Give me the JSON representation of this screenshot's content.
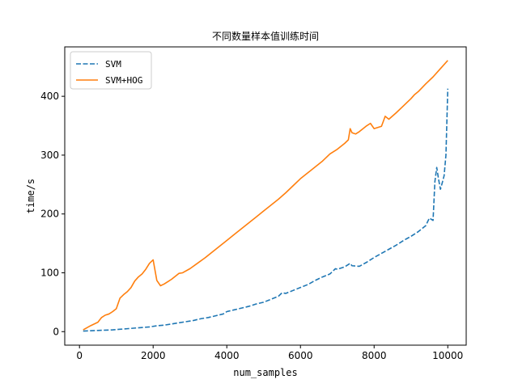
{
  "chart_data": {
    "type": "line",
    "title": "不同数量样本值训练时间",
    "xlabel": "num_samples",
    "ylabel": "time/s",
    "xlim": [
      -400,
      10500
    ],
    "ylim": [
      -23,
      484
    ],
    "xticks": [
      0,
      2000,
      4000,
      6000,
      8000,
      10000
    ],
    "yticks": [
      0,
      100,
      200,
      300,
      400
    ],
    "grid": false,
    "legend_position": "top-left",
    "series": [
      {
        "name": "SVM",
        "color": "#1f77b4",
        "style": "dashed",
        "x": [
          100,
          300,
          500,
          700,
          900,
          1100,
          1300,
          1500,
          1700,
          1900,
          2100,
          2300,
          2500,
          2700,
          2900,
          3100,
          3300,
          3500,
          3700,
          3900,
          4000,
          4200,
          4400,
          4600,
          4800,
          5000,
          5200,
          5400,
          5500,
          5600,
          5800,
          6000,
          6200,
          6400,
          6600,
          6800,
          6950,
          7000,
          7200,
          7350,
          7400,
          7600,
          7800,
          8000,
          8200,
          8400,
          8600,
          8800,
          9000,
          9200,
          9400,
          9500,
          9600,
          9650,
          9700,
          9750,
          9800,
          9850,
          9900,
          9950,
          10000
        ],
        "y": [
          1,
          1.5,
          2,
          2.5,
          3,
          4,
          5,
          6,
          7,
          8,
          10,
          11,
          13,
          15,
          17,
          19,
          22,
          24,
          27,
          30,
          34,
          37,
          40,
          43,
          47,
          50,
          55,
          60,
          66,
          65,
          70,
          75,
          80,
          87,
          93,
          98,
          107,
          106,
          110,
          116,
          112,
          111,
          118,
          126,
          133,
          140,
          147,
          155,
          162,
          170,
          180,
          193,
          189,
          255,
          279,
          259,
          242,
          253,
          265,
          300,
          413
        ]
      },
      {
        "name": "SVM+HOG",
        "color": "#ff7f0e",
        "style": "solid",
        "x": [
          100,
          300,
          500,
          600,
          700,
          800,
          900,
          1000,
          1100,
          1200,
          1300,
          1400,
          1500,
          1600,
          1700,
          1800,
          1900,
          2000,
          2100,
          2200,
          2300,
          2400,
          2500,
          2600,
          2700,
          2800,
          3000,
          3200,
          3400,
          3600,
          3800,
          4000,
          4200,
          4400,
          4600,
          4800,
          5000,
          5200,
          5400,
          5600,
          5800,
          6000,
          6200,
          6400,
          6600,
          6800,
          7000,
          7200,
          7300,
          7350,
          7400,
          7500,
          7600,
          7800,
          7900,
          8000,
          8200,
          8300,
          8400,
          8600,
          8800,
          9000,
          9100,
          9200,
          9400,
          9600,
          9800,
          10000
        ],
        "y": [
          3,
          10,
          16,
          24,
          28,
          30,
          34,
          39,
          57,
          63,
          68,
          75,
          86,
          93,
          98,
          106,
          116,
          122,
          87,
          78,
          81,
          85,
          89,
          94,
          99,
          100,
          107,
          116,
          125,
          135,
          145,
          155,
          165,
          175,
          185,
          195,
          205,
          215,
          225,
          236,
          248,
          260,
          270,
          280,
          290,
          302,
          310,
          320,
          326,
          345,
          338,
          336,
          340,
          350,
          354,
          345,
          349,
          366,
          361,
          372,
          384,
          396,
          403,
          408,
          421,
          433,
          447,
          461
        ]
      }
    ]
  }
}
